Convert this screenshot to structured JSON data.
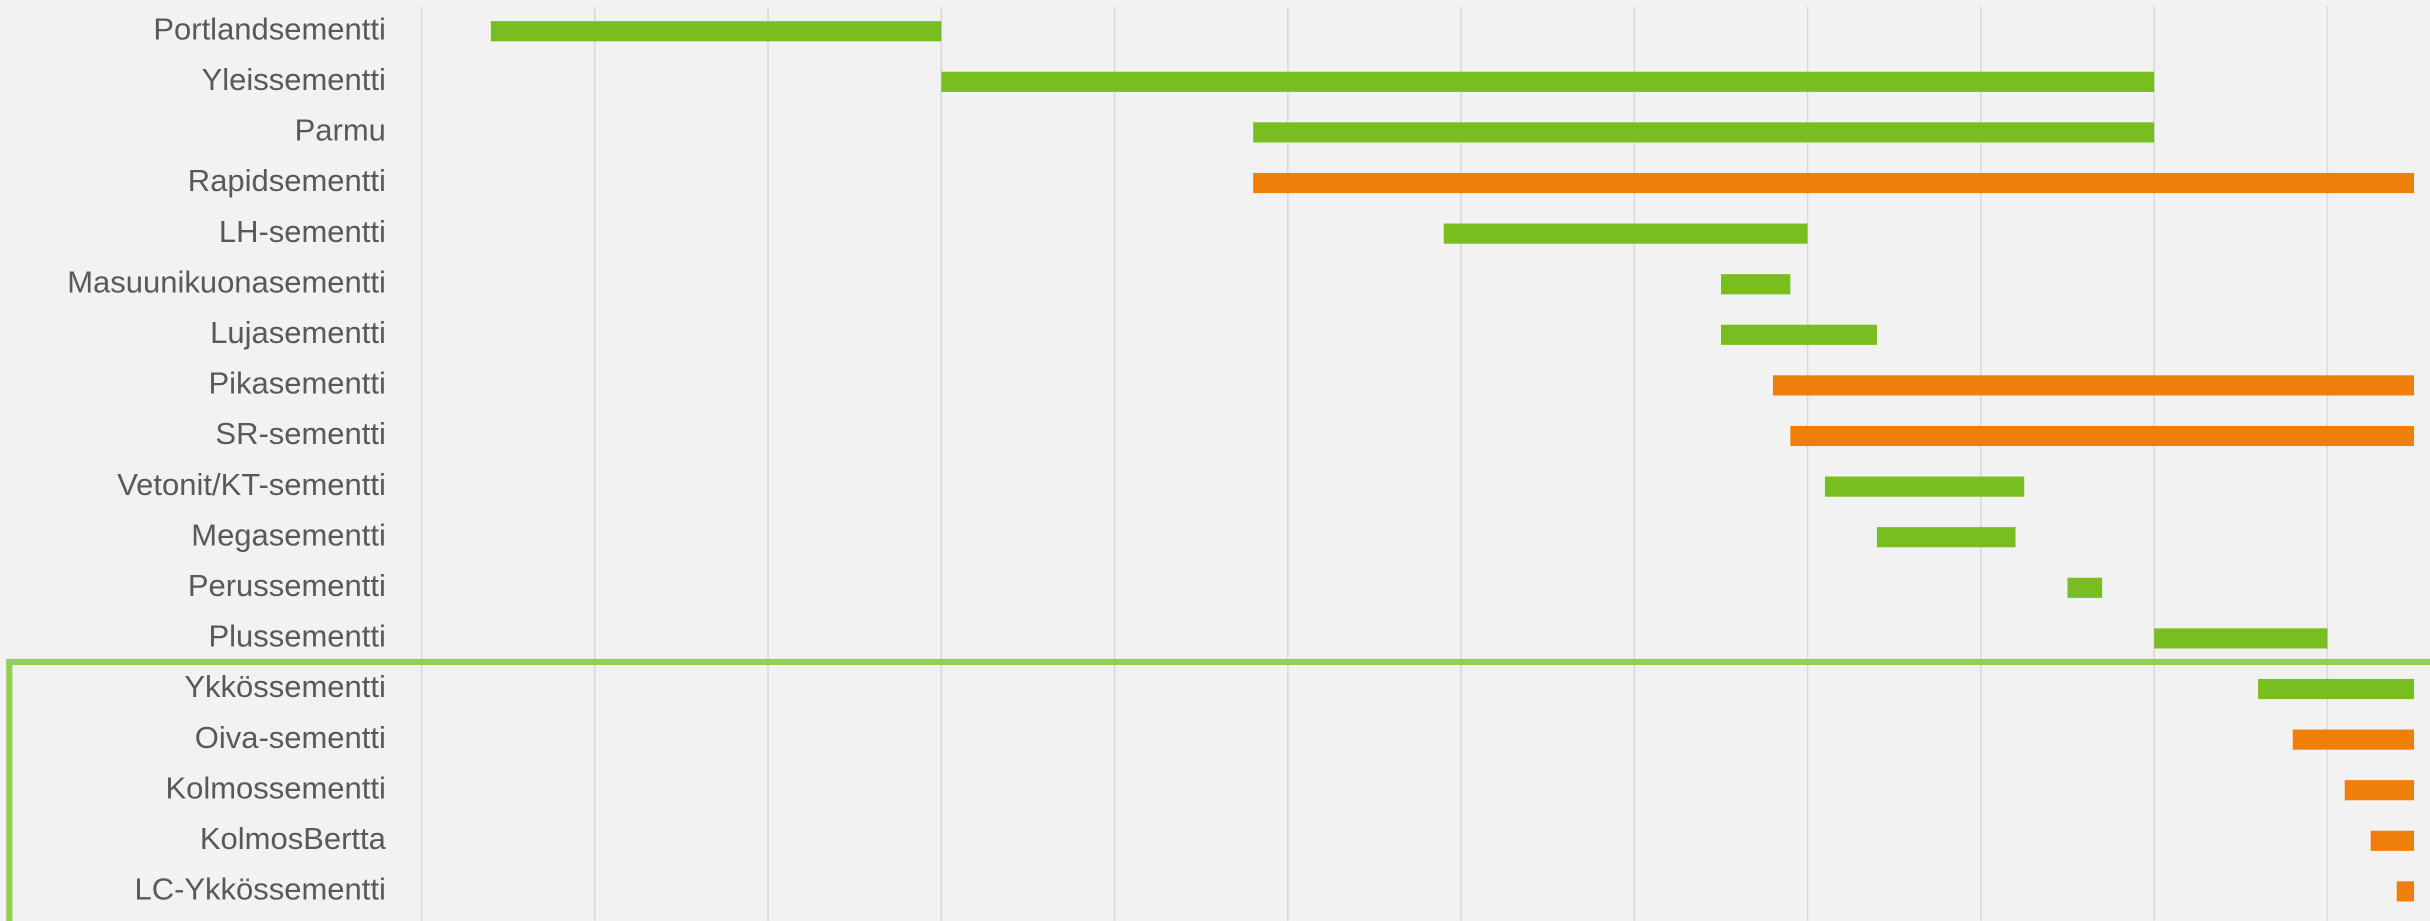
{
  "chart_data": {
    "type": "gantt",
    "categories": [
      "Portlandsementti",
      "Yleissementti",
      "Parmu",
      "Rapidsementti",
      "LH-sementti",
      "Masuunikuonasementti",
      "Lujasementti",
      "Pikasementti",
      "SR-sementti",
      "Vetonit/KT-sementti",
      "Megasementti",
      "Perussementti",
      "Plussementti",
      "Ykkössementti",
      "Oiva-sementti",
      "Kolmossementti",
      "KolmosBertta",
      "LC-Ykkössementti"
    ],
    "start": [
      0.4,
      3.0,
      4.8,
      4.8,
      5.9,
      7.5,
      7.5,
      7.8,
      7.9,
      8.1,
      8.4,
      9.5,
      10.0,
      10.6,
      10.8,
      11.1,
      11.25,
      11.4
    ],
    "end": [
      3.0,
      10.0,
      10.0,
      11.5,
      8.0,
      7.9,
      8.4,
      11.5,
      11.5,
      9.25,
      9.2,
      9.7,
      11.0,
      11.5,
      11.5,
      11.5,
      11.5,
      11.5
    ],
    "colors": [
      "#78be20",
      "#78be20",
      "#78be20",
      "#f07f09",
      "#78be20",
      "#78be20",
      "#78be20",
      "#f07f09",
      "#f07f09",
      "#78be20",
      "#78be20",
      "#78be20",
      "#78be20",
      "#78be20",
      "#f07f09",
      "#f07f09",
      "#f07f09",
      "#f07f09"
    ],
    "xlim": [
      0,
      11.6
    ],
    "xticks": [
      0,
      1,
      2,
      3,
      4,
      5,
      6,
      7,
      8,
      9,
      10,
      11
    ],
    "grid": true
  }
}
